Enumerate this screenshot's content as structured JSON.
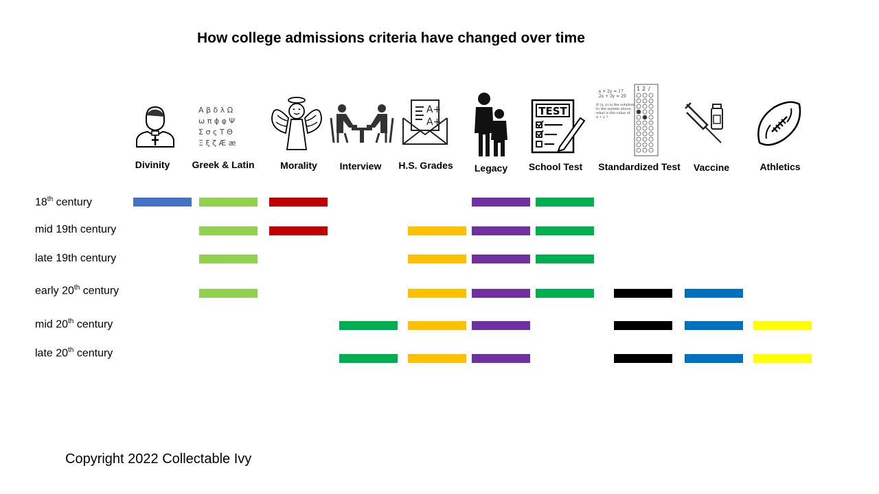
{
  "title": "How college admissions criteria have changed over time",
  "copyright": "Copyright 2022 Collectable Ivy",
  "columns": [
    {
      "label": "Divinity",
      "icon": "priest-icon",
      "color": "#4472C4"
    },
    {
      "label": "Greek & Latin",
      "icon": "greek-letters-icon",
      "color": "#92D050"
    },
    {
      "label": "Morality",
      "icon": "angel-icon",
      "color": "#C00000"
    },
    {
      "label": "Interview",
      "icon": "interview-icon",
      "color": "#00B050"
    },
    {
      "label": "H.S. Grades",
      "icon": "grades-envelope-icon",
      "color": "#FFC000"
    },
    {
      "label": "Legacy",
      "icon": "parent-child-icon",
      "color": "#7030A0"
    },
    {
      "label": "School Test",
      "icon": "test-paper-icon",
      "color": "#00B050"
    },
    {
      "label": "Standardized Test",
      "icon": "bubble-sheet-icon",
      "color": "#000000"
    },
    {
      "label": "Vaccine",
      "icon": "vaccine-icon",
      "color": "#0070C0"
    },
    {
      "label": "Athletics",
      "icon": "football-icon",
      "color": "#FFFF00"
    }
  ],
  "rows": [
    {
      "base": "18",
      "sup": "th",
      "rest": " century",
      "criteria": [
        "Divinity",
        "Greek & Latin",
        "Morality",
        "Legacy",
        "School Test"
      ]
    },
    {
      "base": "mid 19th century",
      "sup": "",
      "rest": "",
      "criteria": [
        "Greek & Latin",
        "Morality",
        "H.S. Grades",
        "Legacy",
        "School Test"
      ]
    },
    {
      "base": "late 19th century",
      "sup": "",
      "rest": "",
      "criteria": [
        "Greek & Latin",
        "H.S. Grades",
        "Legacy",
        "School Test"
      ]
    },
    {
      "base": "early 20",
      "sup": "th",
      "rest": " century",
      "criteria": [
        "Greek & Latin",
        "H.S. Grades",
        "Legacy",
        "School Test",
        "Standardized Test",
        "Vaccine"
      ]
    },
    {
      "base": "mid 20",
      "sup": "th",
      "rest": " century",
      "criteria": [
        "Interview",
        "H.S. Grades",
        "Legacy",
        "Standardized Test",
        "Vaccine",
        "Athletics"
      ]
    },
    {
      "base": "late 20",
      "sup": "th",
      "rest": " century",
      "criteria": [
        "Interview",
        "H.S. Grades",
        "Legacy",
        "Standardized Test",
        "Vaccine",
        "Athletics"
      ]
    }
  ],
  "icon_text": {
    "greek_letters": [
      "Α β δ λ Ω",
      "ω π ϕ φ Ψ",
      "Σ σ ς Τ Θ",
      "Ξ ξ ζ Æ æ"
    ],
    "grades": [
      "A+",
      "A+"
    ],
    "test": "TEST",
    "bubble_equations": [
      ".x + 2y = 17",
      ".2x + 3y = 29",
      "If (x, y) is the solution",
      "to the system above,",
      "what is the value of",
      "x + y ?"
    ],
    "bubble_header": [
      "1",
      "2",
      "/"
    ]
  }
}
